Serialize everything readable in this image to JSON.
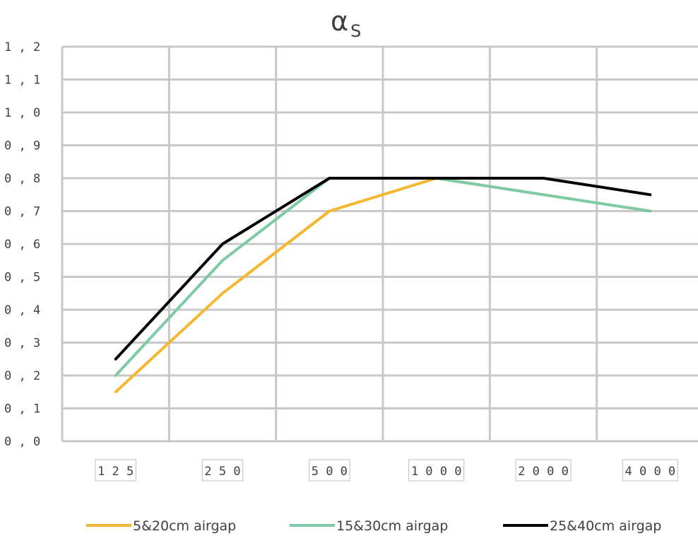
{
  "chart_data": {
    "type": "line",
    "title": "α",
    "title_subscript": "S",
    "categories": [
      "125",
      "250",
      "500",
      "1000",
      "2000",
      "4000"
    ],
    "y_tick_labels": [
      "0,0",
      "0,1",
      "0,2",
      "0,3",
      "0,4",
      "0,5",
      "0,6",
      "0,7",
      "0,8",
      "0,9",
      "1,0",
      "1,1",
      "1,2"
    ],
    "ylim": [
      0,
      1.2
    ],
    "grid": true,
    "legend_position": "bottom",
    "series": [
      {
        "name": "5&20cm airgap",
        "color": "#f5b730",
        "values": [
          0.15,
          0.45,
          0.7,
          0.8,
          0.75,
          0.7
        ]
      },
      {
        "name": "15&30cm airgap",
        "color": "#7dcba5",
        "values": [
          0.2,
          0.55,
          0.8,
          0.8,
          0.75,
          0.7
        ]
      },
      {
        "name": "25&40cm airgap",
        "color": "#000000",
        "values": [
          0.25,
          0.6,
          0.8,
          0.8,
          0.8,
          0.75
        ]
      }
    ]
  }
}
